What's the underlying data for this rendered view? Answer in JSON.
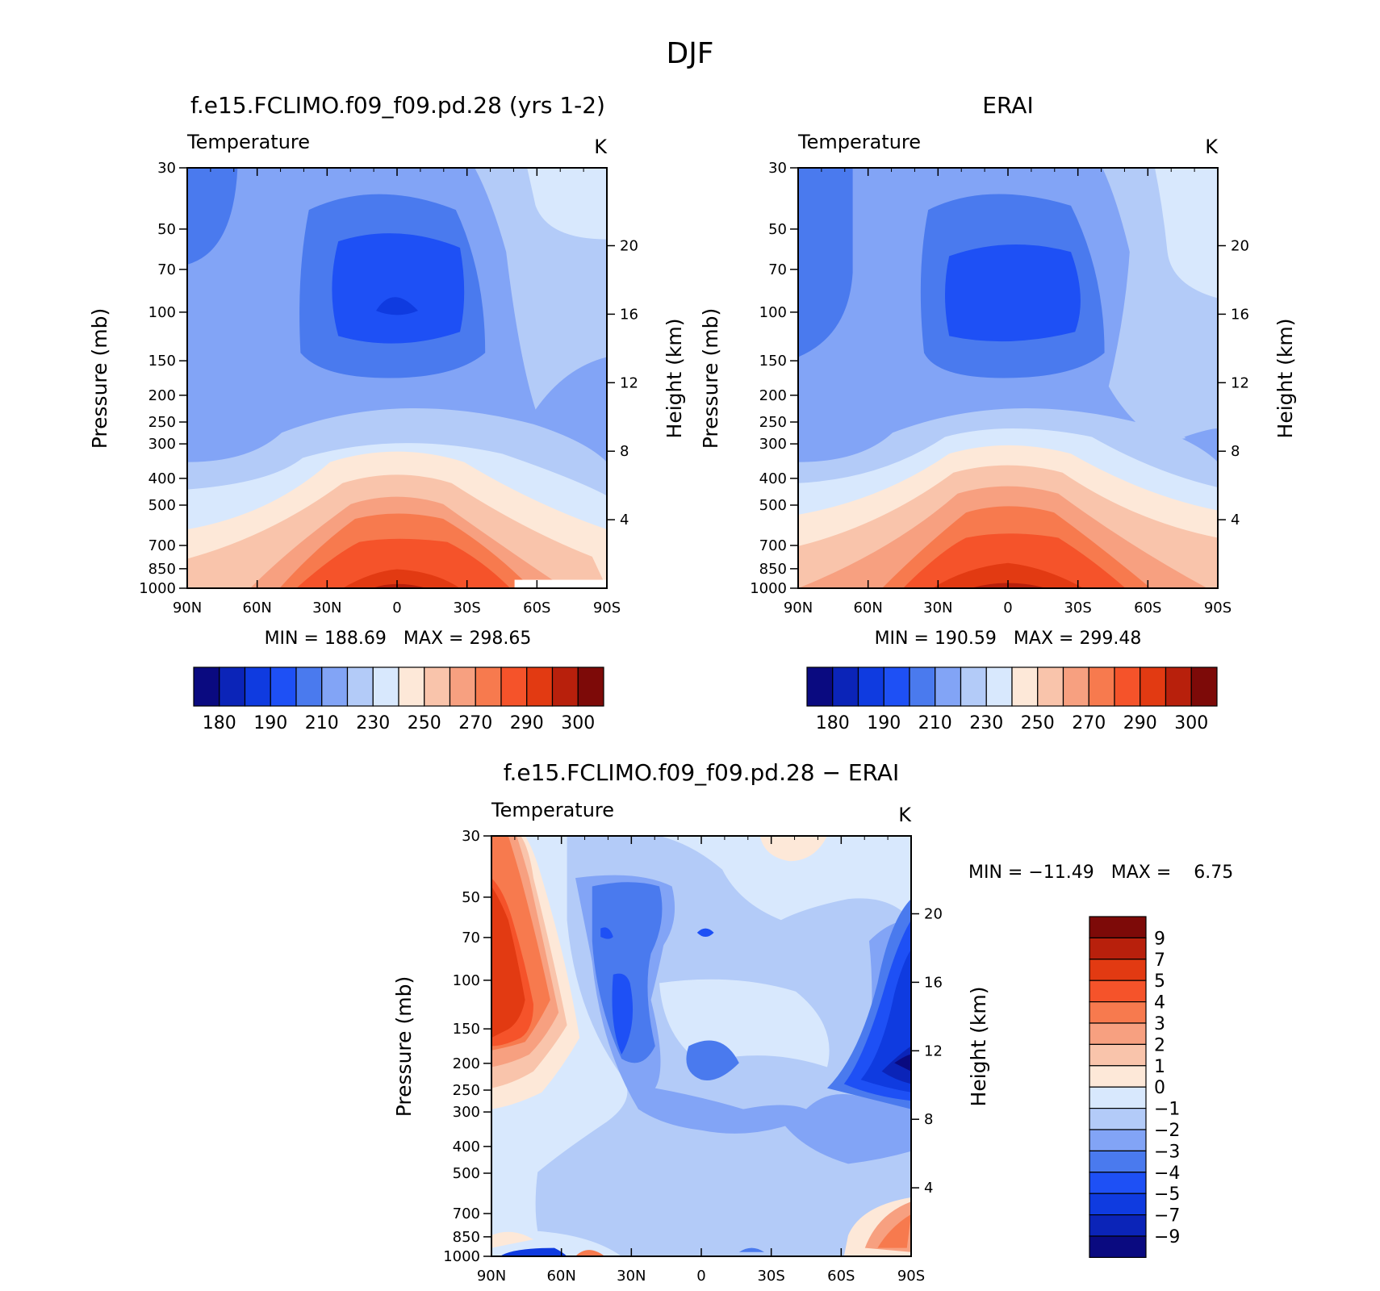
{
  "figure": {
    "title": "DJF"
  },
  "colormap_abs": [
    "#0a0a80",
    "#0b24b8",
    "#0f3be0",
    "#1e50f5",
    "#4a7aee",
    "#82a4f6",
    "#b3cbf8",
    "#d8e8fd",
    "#fde8d8",
    "#f9c4ab",
    "#f7a080",
    "#f77a4e",
    "#f5532a",
    "#e23a12",
    "#b8200c",
    "#7d0a08"
  ],
  "colormap_diff": [
    "#7d0a08",
    "#b8200c",
    "#e23a12",
    "#f5532a",
    "#f77a4e",
    "#f7a080",
    "#f9c4ab",
    "#fde8d8",
    "#d8e8fd",
    "#b3cbf8",
    "#82a4f6",
    "#4a7aee",
    "#1e50f5",
    "#0f3be0",
    "#0b24b8",
    "#0a0a80"
  ],
  "chart_data": [
    {
      "type": "heatmap",
      "title": "f.e15.FCLIMO.f09_f09.pd.28 (yrs 1-2)",
      "variable": "Temperature",
      "units": "K",
      "xlabel": "",
      "ylabel": "Pressure (mb)",
      "ylabel_right": "Height (km)",
      "x_ticks": [
        "90N",
        "60N",
        "30N",
        "0",
        "30S",
        "60S",
        "90S"
      ],
      "y_ticks": [
        "30",
        "50",
        "70",
        "100",
        "150",
        "200",
        "250",
        "300",
        "400",
        "500",
        "700",
        "850",
        "1000"
      ],
      "y_ticks_right": [
        "20",
        "16",
        "12",
        "8",
        "4"
      ],
      "y_scale": "log",
      "xlim": [
        "90N",
        "90S"
      ],
      "ylim": [
        1000,
        30
      ],
      "min_label": "MIN",
      "min": "188.69",
      "max_label": "MAX",
      "max": "298.65",
      "colorbar_ticks": [
        "180",
        "190",
        "210",
        "230",
        "250",
        "270",
        "290",
        "300"
      ]
    },
    {
      "type": "heatmap",
      "title": "ERAI",
      "variable": "Temperature",
      "units": "K",
      "xlabel": "",
      "ylabel": "Pressure (mb)",
      "ylabel_right": "Height (km)",
      "x_ticks": [
        "90N",
        "60N",
        "30N",
        "0",
        "30S",
        "60S",
        "90S"
      ],
      "y_ticks": [
        "30",
        "50",
        "70",
        "100",
        "150",
        "200",
        "250",
        "300",
        "400",
        "500",
        "700",
        "850",
        "1000"
      ],
      "y_ticks_right": [
        "20",
        "16",
        "12",
        "8",
        "4"
      ],
      "y_scale": "log",
      "xlim": [
        "90N",
        "90S"
      ],
      "ylim": [
        1000,
        30
      ],
      "min_label": "MIN",
      "min": "190.59",
      "max_label": "MAX",
      "max": "299.48",
      "colorbar_ticks": [
        "180",
        "190",
        "210",
        "230",
        "250",
        "270",
        "290",
        "300"
      ]
    },
    {
      "type": "heatmap",
      "title": "f.e15.FCLIMO.f09_f09.pd.28 − ERAI",
      "variable": "Temperature",
      "units": "K",
      "xlabel": "",
      "ylabel": "Pressure (mb)",
      "ylabel_right": "Height (km)",
      "x_ticks": [
        "90N",
        "60N",
        "30N",
        "0",
        "30S",
        "60S",
        "90S"
      ],
      "y_ticks": [
        "30",
        "50",
        "70",
        "100",
        "150",
        "200",
        "250",
        "300",
        "400",
        "500",
        "700",
        "850",
        "1000"
      ],
      "y_ticks_right": [
        "20",
        "16",
        "12",
        "8",
        "4"
      ],
      "y_scale": "log",
      "xlim": [
        "90N",
        "90S"
      ],
      "ylim": [
        1000,
        30
      ],
      "min_label": "MIN",
      "min": "−11.49",
      "max_label": "MAX",
      "max": "6.75",
      "colorbar_ticks": [
        "9",
        "7",
        "5",
        "4",
        "3",
        "2",
        "1",
        "0",
        "−1",
        "−2",
        "−3",
        "−4",
        "−5",
        "−7",
        "−9"
      ]
    }
  ]
}
